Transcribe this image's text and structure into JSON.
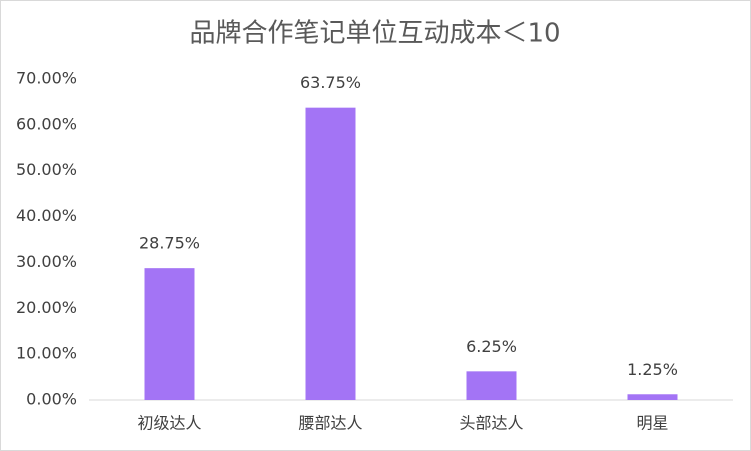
{
  "chart_data": {
    "type": "bar",
    "title": "品牌合作笔记单位互动成本＜10",
    "categories": [
      "初级达人",
      "腰部达人",
      "头部达人",
      "明星"
    ],
    "values": [
      28.75,
      63.75,
      6.25,
      1.25
    ],
    "value_labels": [
      "28.75%",
      "63.75%",
      "6.25%",
      "1.25%"
    ],
    "color": "#a374f5",
    "ylim": [
      0,
      70
    ],
    "yticks": [
      {
        "value": 0,
        "label": "0.00%"
      },
      {
        "value": 10,
        "label": "10.00%"
      },
      {
        "value": 20,
        "label": "20.00%"
      },
      {
        "value": 30,
        "label": "30.00%"
      },
      {
        "value": 40,
        "label": "40.00%"
      },
      {
        "value": 50,
        "label": "50.00%"
      },
      {
        "value": 60,
        "label": "60.00%"
      },
      {
        "value": 70,
        "label": "70.00%"
      }
    ],
    "grid": false
  }
}
